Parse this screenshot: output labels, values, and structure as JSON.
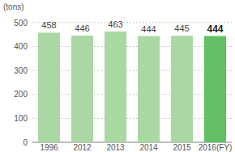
{
  "chart_data": {
    "type": "bar",
    "y_label": "(tons)",
    "categories": [
      "1996",
      "2012",
      "2013",
      "2014",
      "2015",
      "2016(FY)"
    ],
    "values": [
      458,
      446,
      463,
      444,
      445,
      444
    ],
    "colors": [
      "#a9d8a3",
      "#a9d8a3",
      "#a9d8a3",
      "#a9d8a3",
      "#a9d8a3",
      "#63bf63"
    ],
    "ylim": [
      0,
      500
    ],
    "yticks": [
      0,
      100,
      200,
      300,
      400,
      500
    ],
    "grid": true,
    "data_labels": true
  }
}
